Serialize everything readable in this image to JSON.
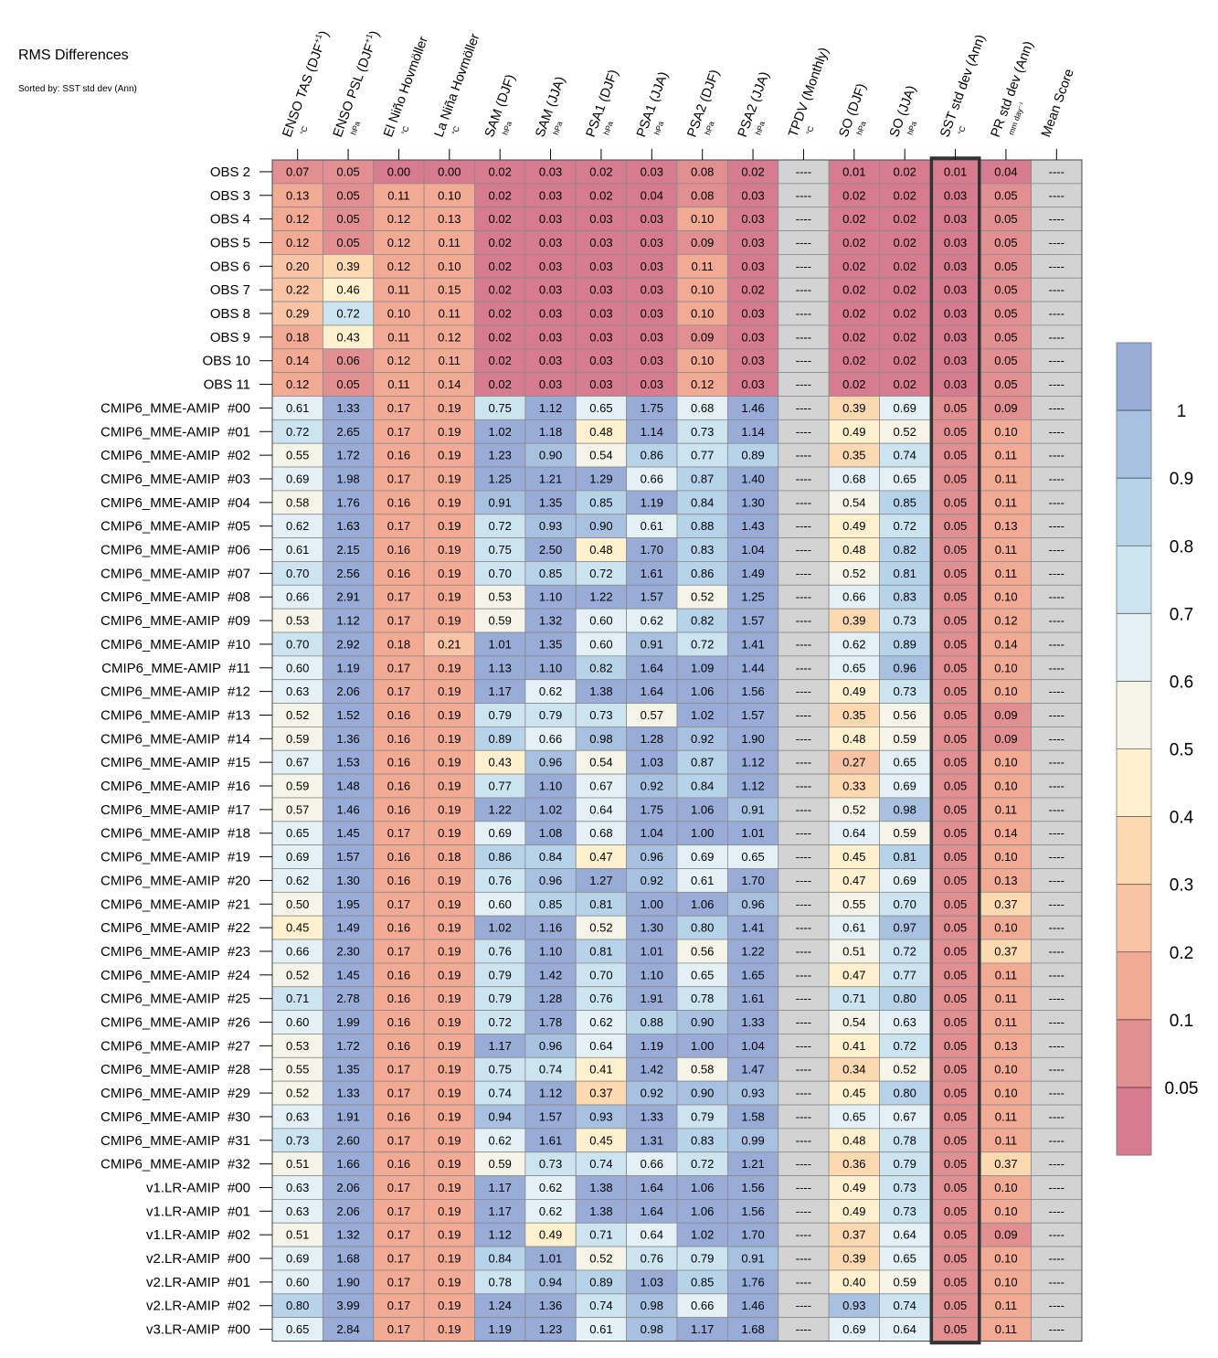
{
  "header": {
    "title": "RMS Differences",
    "subtitle": "Sorted by: SST std dev (Ann)"
  },
  "chart_data": {
    "type": "heatmap",
    "columns": [
      {
        "label": "ENSO TAS (DJF",
        "sup": "+1",
        "close": ")",
        "unit": "°C"
      },
      {
        "label": "ENSO PSL (DJF",
        "sup": "+1",
        "close": ")",
        "unit": "hPa"
      },
      {
        "label": "El Niño Hovmöller",
        "sup": "",
        "close": "",
        "unit": "°C"
      },
      {
        "label": "La Niña Hovmöller",
        "sup": "",
        "close": "",
        "unit": "°C"
      },
      {
        "label": "SAM (DJF)",
        "sup": "",
        "close": "",
        "unit": "hPa"
      },
      {
        "label": "SAM (JJA)",
        "sup": "",
        "close": "",
        "unit": "hPa"
      },
      {
        "label": "PSA1 (DJF)",
        "sup": "",
        "close": "",
        "unit": "hPa"
      },
      {
        "label": "PSA1 (JJA)",
        "sup": "",
        "close": "",
        "unit": "hPa"
      },
      {
        "label": "PSA2 (DJF)",
        "sup": "",
        "close": "",
        "unit": "hPa"
      },
      {
        "label": "PSA2 (JJA)",
        "sup": "",
        "close": "",
        "unit": "hPa"
      },
      {
        "label": "TPDV (Monthly)",
        "sup": "",
        "close": "",
        "unit": "°C"
      },
      {
        "label": "SO (DJF)",
        "sup": "",
        "close": "",
        "unit": "hPa"
      },
      {
        "label": "SO (JJA)",
        "sup": "",
        "close": "",
        "unit": "hPa"
      },
      {
        "label": "SST std dev (Ann)",
        "sup": "",
        "close": "",
        "unit": "°C"
      },
      {
        "label": "PR std dev (Ann)",
        "sup": "",
        "close": "",
        "unit": "mm day⁻¹"
      },
      {
        "label": "Mean Score",
        "sup": "",
        "close": "",
        "unit": ""
      }
    ],
    "highlight_column": "SST std dev (Ann)",
    "missing_label": "----",
    "rows": [
      {
        "name": "OBS 2",
        "values": [
          0.07,
          0.05,
          0.0,
          0.0,
          0.02,
          0.03,
          0.02,
          0.03,
          0.08,
          0.02,
          null,
          0.01,
          0.02,
          0.01,
          0.04,
          null
        ]
      },
      {
        "name": "OBS 3",
        "values": [
          0.13,
          0.05,
          0.11,
          0.1,
          0.02,
          0.03,
          0.02,
          0.04,
          0.08,
          0.03,
          null,
          0.02,
          0.02,
          0.03,
          0.05,
          null
        ]
      },
      {
        "name": "OBS 4",
        "values": [
          0.12,
          0.05,
          0.12,
          0.13,
          0.02,
          0.03,
          0.03,
          0.03,
          0.1,
          0.03,
          null,
          0.02,
          0.02,
          0.03,
          0.05,
          null
        ]
      },
      {
        "name": "OBS 5",
        "values": [
          0.12,
          0.05,
          0.12,
          0.11,
          0.02,
          0.03,
          0.03,
          0.03,
          0.09,
          0.03,
          null,
          0.02,
          0.02,
          0.03,
          0.05,
          null
        ]
      },
      {
        "name": "OBS 6",
        "values": [
          0.2,
          0.39,
          0.12,
          0.1,
          0.02,
          0.03,
          0.03,
          0.03,
          0.11,
          0.03,
          null,
          0.02,
          0.02,
          0.03,
          0.05,
          null
        ]
      },
      {
        "name": "OBS 7",
        "values": [
          0.22,
          0.46,
          0.11,
          0.15,
          0.02,
          0.03,
          0.03,
          0.03,
          0.1,
          0.02,
          null,
          0.02,
          0.02,
          0.03,
          0.05,
          null
        ]
      },
      {
        "name": "OBS 8",
        "values": [
          0.29,
          0.72,
          0.1,
          0.11,
          0.02,
          0.03,
          0.03,
          0.03,
          0.1,
          0.03,
          null,
          0.02,
          0.02,
          0.03,
          0.05,
          null
        ]
      },
      {
        "name": "OBS 9",
        "values": [
          0.18,
          0.43,
          0.11,
          0.12,
          0.02,
          0.03,
          0.03,
          0.03,
          0.09,
          0.03,
          null,
          0.02,
          0.02,
          0.03,
          0.05,
          null
        ]
      },
      {
        "name": "OBS 10",
        "values": [
          0.14,
          0.06,
          0.12,
          0.11,
          0.02,
          0.03,
          0.03,
          0.03,
          0.1,
          0.03,
          null,
          0.02,
          0.02,
          0.03,
          0.05,
          null
        ]
      },
      {
        "name": "OBS 11",
        "values": [
          0.12,
          0.05,
          0.11,
          0.14,
          0.02,
          0.03,
          0.03,
          0.03,
          0.12,
          0.03,
          null,
          0.02,
          0.02,
          0.03,
          0.05,
          null
        ]
      },
      {
        "name": "CMIP6_MME-AMIP  #00",
        "values": [
          0.61,
          1.33,
          0.17,
          0.19,
          0.75,
          1.12,
          0.65,
          1.75,
          0.68,
          1.46,
          null,
          0.39,
          0.69,
          0.05,
          0.09,
          null
        ]
      },
      {
        "name": "CMIP6_MME-AMIP  #01",
        "values": [
          0.72,
          2.65,
          0.17,
          0.19,
          1.02,
          1.18,
          0.48,
          1.14,
          0.73,
          1.14,
          null,
          0.49,
          0.52,
          0.05,
          0.1,
          null
        ]
      },
      {
        "name": "CMIP6_MME-AMIP  #02",
        "values": [
          0.55,
          1.72,
          0.16,
          0.19,
          1.23,
          0.9,
          0.54,
          0.86,
          0.77,
          0.89,
          null,
          0.35,
          0.74,
          0.05,
          0.11,
          null
        ]
      },
      {
        "name": "CMIP6_MME-AMIP  #03",
        "values": [
          0.69,
          1.98,
          0.17,
          0.19,
          1.25,
          1.21,
          1.29,
          0.66,
          0.87,
          1.4,
          null,
          0.68,
          0.65,
          0.05,
          0.11,
          null
        ]
      },
      {
        "name": "CMIP6_MME-AMIP  #04",
        "values": [
          0.58,
          1.76,
          0.16,
          0.19,
          0.91,
          1.35,
          0.85,
          1.19,
          0.84,
          1.3,
          null,
          0.54,
          0.85,
          0.05,
          0.11,
          null
        ]
      },
      {
        "name": "CMIP6_MME-AMIP  #05",
        "values": [
          0.62,
          1.63,
          0.17,
          0.19,
          0.72,
          0.93,
          0.9,
          0.61,
          0.88,
          1.43,
          null,
          0.49,
          0.72,
          0.05,
          0.13,
          null
        ]
      },
      {
        "name": "CMIP6_MME-AMIP  #06",
        "values": [
          0.61,
          2.15,
          0.16,
          0.19,
          0.75,
          2.5,
          0.48,
          1.7,
          0.83,
          1.04,
          null,
          0.48,
          0.82,
          0.05,
          0.11,
          null
        ]
      },
      {
        "name": "CMIP6_MME-AMIP  #07",
        "values": [
          0.7,
          2.56,
          0.16,
          0.19,
          0.7,
          0.85,
          0.72,
          1.61,
          0.86,
          1.49,
          null,
          0.52,
          0.81,
          0.05,
          0.11,
          null
        ]
      },
      {
        "name": "CMIP6_MME-AMIP  #08",
        "values": [
          0.66,
          2.91,
          0.17,
          0.19,
          0.53,
          1.1,
          1.22,
          1.57,
          0.52,
          1.25,
          null,
          0.66,
          0.83,
          0.05,
          0.1,
          null
        ]
      },
      {
        "name": "CMIP6_MME-AMIP  #09",
        "values": [
          0.53,
          1.12,
          0.17,
          0.19,
          0.59,
          1.32,
          0.6,
          0.62,
          0.82,
          1.57,
          null,
          0.39,
          0.73,
          0.05,
          0.12,
          null
        ]
      },
      {
        "name": "CMIP6_MME-AMIP  #10",
        "values": [
          0.7,
          2.92,
          0.18,
          0.21,
          1.01,
          1.35,
          0.6,
          0.91,
          0.72,
          1.41,
          null,
          0.62,
          0.89,
          0.05,
          0.14,
          null
        ]
      },
      {
        "name": "CMIP6_MME-AMIP  #11",
        "values": [
          0.6,
          1.19,
          0.17,
          0.19,
          1.13,
          1.1,
          0.82,
          1.64,
          1.09,
          1.44,
          null,
          0.65,
          0.96,
          0.05,
          0.1,
          null
        ]
      },
      {
        "name": "CMIP6_MME-AMIP  #12",
        "values": [
          0.63,
          2.06,
          0.17,
          0.19,
          1.17,
          0.62,
          1.38,
          1.64,
          1.06,
          1.56,
          null,
          0.49,
          0.73,
          0.05,
          0.1,
          null
        ]
      },
      {
        "name": "CMIP6_MME-AMIP  #13",
        "values": [
          0.52,
          1.52,
          0.16,
          0.19,
          0.79,
          0.79,
          0.73,
          0.57,
          1.02,
          1.57,
          null,
          0.35,
          0.56,
          0.05,
          0.09,
          null
        ]
      },
      {
        "name": "CMIP6_MME-AMIP  #14",
        "values": [
          0.59,
          1.36,
          0.16,
          0.19,
          0.89,
          0.66,
          0.98,
          1.28,
          0.92,
          1.9,
          null,
          0.48,
          0.59,
          0.05,
          0.09,
          null
        ]
      },
      {
        "name": "CMIP6_MME-AMIP  #15",
        "values": [
          0.67,
          1.53,
          0.16,
          0.19,
          0.43,
          0.96,
          0.54,
          1.03,
          0.87,
          1.12,
          null,
          0.27,
          0.65,
          0.05,
          0.1,
          null
        ]
      },
      {
        "name": "CMIP6_MME-AMIP  #16",
        "values": [
          0.59,
          1.48,
          0.16,
          0.19,
          0.77,
          1.1,
          0.67,
          0.92,
          0.84,
          1.12,
          null,
          0.33,
          0.69,
          0.05,
          0.1,
          null
        ]
      },
      {
        "name": "CMIP6_MME-AMIP  #17",
        "values": [
          0.57,
          1.46,
          0.16,
          0.19,
          1.22,
          1.02,
          0.64,
          1.75,
          1.06,
          0.91,
          null,
          0.52,
          0.98,
          0.05,
          0.11,
          null
        ]
      },
      {
        "name": "CMIP6_MME-AMIP  #18",
        "values": [
          0.65,
          1.45,
          0.17,
          0.19,
          0.69,
          1.08,
          0.68,
          1.04,
          1.0,
          1.01,
          null,
          0.64,
          0.59,
          0.05,
          0.14,
          null
        ]
      },
      {
        "name": "CMIP6_MME-AMIP  #19",
        "values": [
          0.69,
          1.57,
          0.16,
          0.18,
          0.86,
          0.84,
          0.47,
          0.96,
          0.69,
          0.65,
          null,
          0.45,
          0.81,
          0.05,
          0.1,
          null
        ]
      },
      {
        "name": "CMIP6_MME-AMIP  #20",
        "values": [
          0.62,
          1.3,
          0.16,
          0.19,
          0.76,
          0.96,
          1.27,
          0.92,
          0.61,
          1.7,
          null,
          0.47,
          0.69,
          0.05,
          0.13,
          null
        ]
      },
      {
        "name": "CMIP6_MME-AMIP  #21",
        "values": [
          0.5,
          1.95,
          0.17,
          0.19,
          0.6,
          0.85,
          0.81,
          1.0,
          1.06,
          0.96,
          null,
          0.55,
          0.7,
          0.05,
          0.37,
          null
        ]
      },
      {
        "name": "CMIP6_MME-AMIP  #22",
        "values": [
          0.45,
          1.49,
          0.16,
          0.19,
          1.02,
          1.16,
          0.52,
          1.3,
          0.8,
          1.41,
          null,
          0.61,
          0.97,
          0.05,
          0.1,
          null
        ]
      },
      {
        "name": "CMIP6_MME-AMIP  #23",
        "values": [
          0.66,
          2.3,
          0.17,
          0.19,
          0.76,
          1.1,
          0.81,
          1.01,
          0.56,
          1.22,
          null,
          0.51,
          0.72,
          0.05,
          0.37,
          null
        ]
      },
      {
        "name": "CMIP6_MME-AMIP  #24",
        "values": [
          0.52,
          1.45,
          0.16,
          0.19,
          0.79,
          1.42,
          0.7,
          1.1,
          0.65,
          1.65,
          null,
          0.47,
          0.77,
          0.05,
          0.11,
          null
        ]
      },
      {
        "name": "CMIP6_MME-AMIP  #25",
        "values": [
          0.71,
          2.78,
          0.16,
          0.19,
          0.79,
          1.28,
          0.76,
          1.91,
          0.78,
          1.61,
          null,
          0.71,
          0.8,
          0.05,
          0.11,
          null
        ]
      },
      {
        "name": "CMIP6_MME-AMIP  #26",
        "values": [
          0.6,
          1.99,
          0.16,
          0.19,
          0.72,
          1.78,
          0.62,
          0.88,
          0.9,
          1.33,
          null,
          0.54,
          0.63,
          0.05,
          0.11,
          null
        ]
      },
      {
        "name": "CMIP6_MME-AMIP  #27",
        "values": [
          0.53,
          1.72,
          0.16,
          0.19,
          1.17,
          0.96,
          0.64,
          1.19,
          1.0,
          1.04,
          null,
          0.41,
          0.72,
          0.05,
          0.13,
          null
        ]
      },
      {
        "name": "CMIP6_MME-AMIP  #28",
        "values": [
          0.55,
          1.35,
          0.17,
          0.19,
          0.75,
          0.74,
          0.41,
          1.42,
          0.58,
          1.47,
          null,
          0.34,
          0.52,
          0.05,
          0.1,
          null
        ]
      },
      {
        "name": "CMIP6_MME-AMIP  #29",
        "values": [
          0.52,
          1.33,
          0.17,
          0.19,
          0.74,
          1.12,
          0.37,
          0.92,
          0.9,
          0.93,
          null,
          0.45,
          0.8,
          0.05,
          0.1,
          null
        ]
      },
      {
        "name": "CMIP6_MME-AMIP  #30",
        "values": [
          0.63,
          1.91,
          0.16,
          0.19,
          0.94,
          1.57,
          0.93,
          1.33,
          0.79,
          1.58,
          null,
          0.65,
          0.67,
          0.05,
          0.11,
          null
        ]
      },
      {
        "name": "CMIP6_MME-AMIP  #31",
        "values": [
          0.73,
          2.6,
          0.17,
          0.19,
          0.62,
          1.61,
          0.45,
          1.31,
          0.83,
          0.99,
          null,
          0.48,
          0.78,
          0.05,
          0.11,
          null
        ]
      },
      {
        "name": "CMIP6_MME-AMIP  #32",
        "values": [
          0.51,
          1.66,
          0.16,
          0.19,
          0.59,
          0.73,
          0.74,
          0.66,
          0.72,
          1.21,
          null,
          0.36,
          0.79,
          0.05,
          0.37,
          null
        ]
      },
      {
        "name": "v1.LR-AMIP  #00",
        "values": [
          0.63,
          2.06,
          0.17,
          0.19,
          1.17,
          0.62,
          1.38,
          1.64,
          1.06,
          1.56,
          null,
          0.49,
          0.73,
          0.05,
          0.1,
          null
        ]
      },
      {
        "name": "v1.LR-AMIP  #01",
        "values": [
          0.63,
          2.06,
          0.17,
          0.19,
          1.17,
          0.62,
          1.38,
          1.64,
          1.06,
          1.56,
          null,
          0.49,
          0.73,
          0.05,
          0.1,
          null
        ]
      },
      {
        "name": "v1.LR-AMIP  #02",
        "values": [
          0.51,
          1.32,
          0.17,
          0.19,
          1.12,
          0.49,
          0.71,
          0.64,
          1.02,
          1.7,
          null,
          0.37,
          0.64,
          0.05,
          0.09,
          null
        ]
      },
      {
        "name": "v2.LR-AMIP  #00",
        "values": [
          0.69,
          1.68,
          0.17,
          0.19,
          0.84,
          1.01,
          0.52,
          0.76,
          0.79,
          0.91,
          null,
          0.39,
          0.65,
          0.05,
          0.1,
          null
        ]
      },
      {
        "name": "v2.LR-AMIP  #01",
        "values": [
          0.6,
          1.9,
          0.17,
          0.19,
          0.78,
          0.94,
          0.89,
          1.03,
          0.85,
          1.76,
          null,
          0.4,
          0.59,
          0.05,
          0.1,
          null
        ]
      },
      {
        "name": "v2.LR-AMIP  #02",
        "values": [
          0.8,
          3.99,
          0.17,
          0.19,
          1.24,
          1.36,
          0.74,
          0.98,
          0.66,
          1.46,
          null,
          0.93,
          0.74,
          0.05,
          0.11,
          null
        ]
      },
      {
        "name": "v3.LR-AMIP  #00",
        "values": [
          0.65,
          2.84,
          0.17,
          0.19,
          1.19,
          1.23,
          0.61,
          0.98,
          1.17,
          1.68,
          null,
          0.69,
          0.64,
          0.05,
          0.11,
          null
        ]
      }
    ],
    "colorbar": {
      "tick_labels": [
        "1",
        "0.9",
        "0.8",
        "0.7",
        "0.6",
        "0.5",
        "0.4",
        "0.3",
        "0.2",
        "0.1",
        "0.05"
      ],
      "levels": [
        0.05,
        0.1,
        0.2,
        0.3,
        0.4,
        0.5,
        0.6,
        0.7,
        0.8,
        0.9,
        1
      ],
      "colors": [
        "#d67b90",
        "#e28f92",
        "#f2aa95",
        "#f8c4a5",
        "#fdd9b2",
        "#fff0ce",
        "#f4f4e8",
        "#e3f1f6",
        "#cbe4f0",
        "#b7d3ea",
        "#a8c1e0",
        "#98acd7"
      ],
      "missing_color": "#d3d3d3"
    }
  }
}
